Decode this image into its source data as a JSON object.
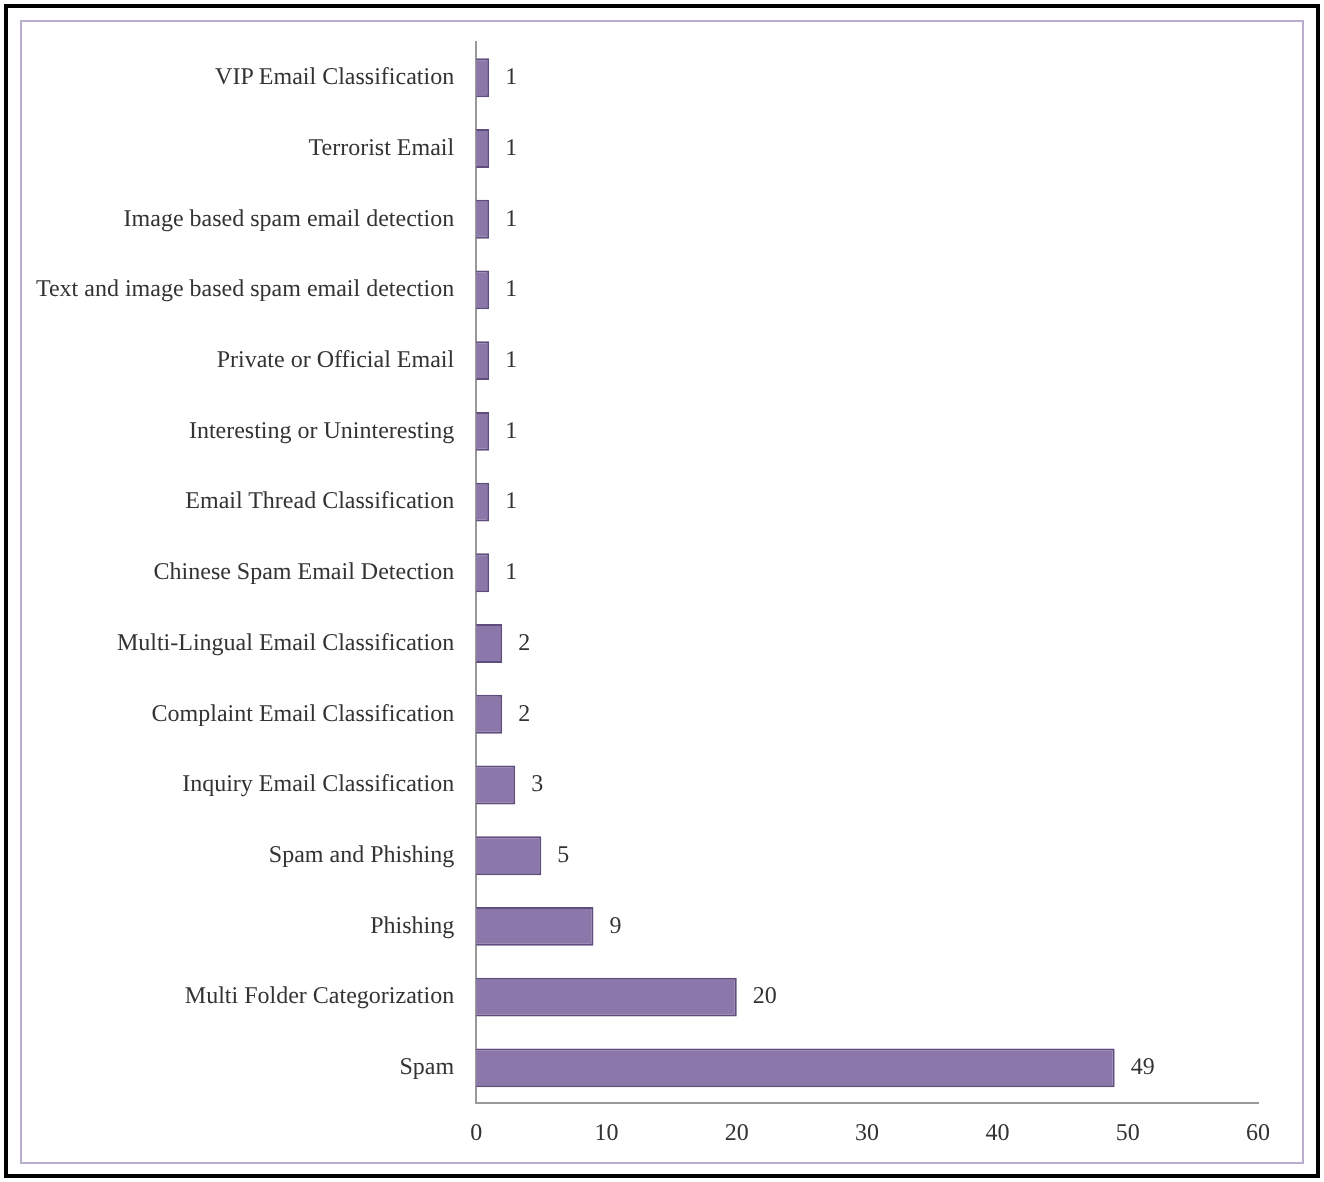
{
  "chart_data": {
    "type": "bar",
    "orientation": "horizontal",
    "categories": [
      "VIP Email Classification",
      "Terrorist Email",
      "Image based spam email detection",
      "Text and image based spam email detection",
      "Private or Official Email",
      "Interesting or Uninteresting",
      "Email Thread Classification",
      "Chinese Spam Email Detection",
      "Multi-Lingual Email Classification",
      "Complaint Email Classification",
      "Inquiry Email Classification",
      "Spam and Phishing",
      "Phishing",
      "Multi Folder Categorization",
      "Spam"
    ],
    "values": [
      1,
      1,
      1,
      1,
      1,
      1,
      1,
      1,
      2,
      2,
      3,
      5,
      9,
      20,
      49
    ],
    "color": "#8b77a9",
    "xlim": [
      0,
      60
    ],
    "xticks": [
      0,
      10,
      20,
      30,
      40,
      50,
      60
    ],
    "grid": false,
    "legend": false,
    "data_labels": true
  }
}
